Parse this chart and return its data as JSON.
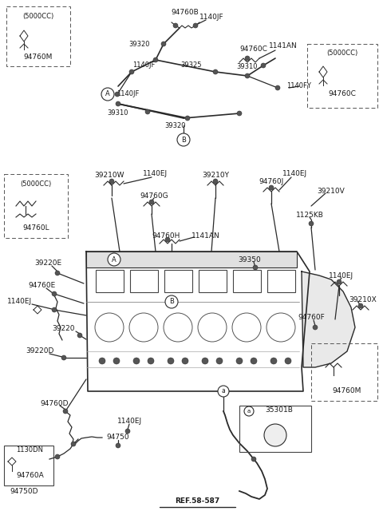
{
  "bg_color": "#ffffff",
  "lc": "#2a2a2a",
  "tc": "#1a1a1a",
  "figsize": [
    4.8,
    6.55
  ],
  "dpi": 100,
  "xlim": [
    0,
    480
  ],
  "ylim": [
    0,
    655
  ]
}
